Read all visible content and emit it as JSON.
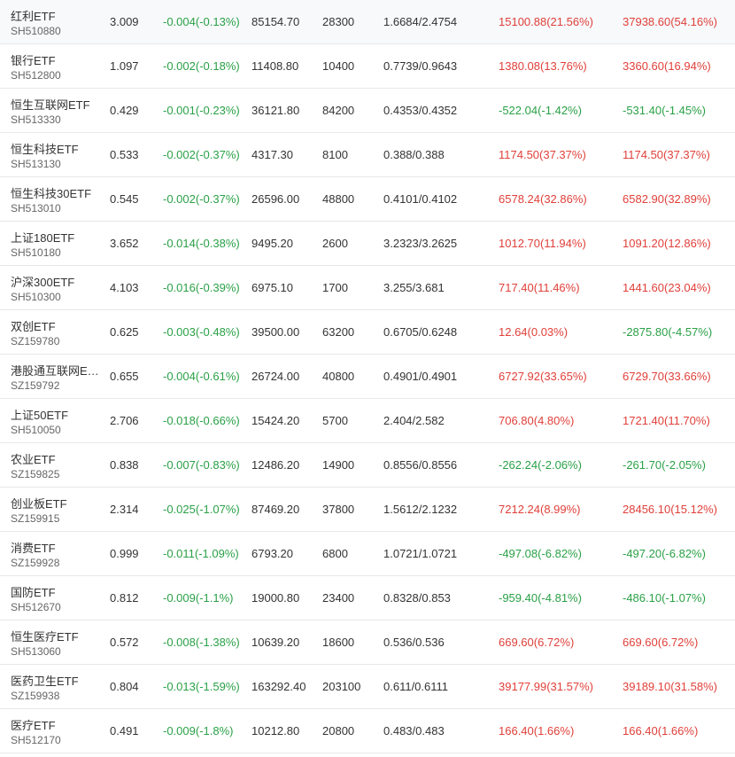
{
  "colors": {
    "up": "#e0403a",
    "down": "#2aa147",
    "text": "#333333",
    "subtext": "#666666",
    "border": "#e8e8e8"
  },
  "rows": [
    {
      "name": "红利ETF",
      "code": "SH510880",
      "price": "3.009",
      "change": "-0.004(-0.13%)",
      "amount": "85154.70",
      "volume": "28300",
      "cost": "1.6684/2.4754",
      "pl1": "15100.88(21.56%)",
      "pl2": "37938.60(54.16%)"
    },
    {
      "name": "银行ETF",
      "code": "SH512800",
      "price": "1.097",
      "change": "-0.002(-0.18%)",
      "amount": "11408.80",
      "volume": "10400",
      "cost": "0.7739/0.9643",
      "pl1": "1380.08(13.76%)",
      "pl2": "3360.60(16.94%)"
    },
    {
      "name": "恒生互联网ETF",
      "code": "SH513330",
      "price": "0.429",
      "change": "-0.001(-0.23%)",
      "amount": "36121.80",
      "volume": "84200",
      "cost": "0.4353/0.4352",
      "pl1": "-522.04(-1.42%)",
      "pl2": "-531.40(-1.45%)"
    },
    {
      "name": "恒生科技ETF",
      "code": "SH513130",
      "price": "0.533",
      "change": "-0.002(-0.37%)",
      "amount": "4317.30",
      "volume": "8100",
      "cost": "0.388/0.388",
      "pl1": "1174.50(37.37%)",
      "pl2": "1174.50(37.37%)"
    },
    {
      "name": "恒生科技30ETF",
      "code": "SH513010",
      "price": "0.545",
      "change": "-0.002(-0.37%)",
      "amount": "26596.00",
      "volume": "48800",
      "cost": "0.4101/0.4102",
      "pl1": "6578.24(32.86%)",
      "pl2": "6582.90(32.89%)"
    },
    {
      "name": "上证180ETF",
      "code": "SH510180",
      "price": "3.652",
      "change": "-0.014(-0.38%)",
      "amount": "9495.20",
      "volume": "2600",
      "cost": "3.2323/3.2625",
      "pl1": "1012.70(11.94%)",
      "pl2": "1091.20(12.86%)"
    },
    {
      "name": "沪深300ETF",
      "code": "SH510300",
      "price": "4.103",
      "change": "-0.016(-0.39%)",
      "amount": "6975.10",
      "volume": "1700",
      "cost": "3.255/3.681",
      "pl1": "717.40(11.46%)",
      "pl2": "1441.60(23.04%)"
    },
    {
      "name": "双创ETF",
      "code": "SZ159780",
      "price": "0.625",
      "change": "-0.003(-0.48%)",
      "amount": "39500.00",
      "volume": "63200",
      "cost": "0.6705/0.6248",
      "pl1": "12.64(0.03%)",
      "pl2": "-2875.80(-4.57%)"
    },
    {
      "name": "港股通互联网ETF",
      "code": "SZ159792",
      "price": "0.655",
      "change": "-0.004(-0.61%)",
      "amount": "26724.00",
      "volume": "40800",
      "cost": "0.4901/0.4901",
      "pl1": "6727.92(33.65%)",
      "pl2": "6729.70(33.66%)"
    },
    {
      "name": "上证50ETF",
      "code": "SH510050",
      "price": "2.706",
      "change": "-0.018(-0.66%)",
      "amount": "15424.20",
      "volume": "5700",
      "cost": "2.404/2.582",
      "pl1": "706.80(4.80%)",
      "pl2": "1721.40(11.70%)"
    },
    {
      "name": "农业ETF",
      "code": "SZ159825",
      "price": "0.838",
      "change": "-0.007(-0.83%)",
      "amount": "12486.20",
      "volume": "14900",
      "cost": "0.8556/0.8556",
      "pl1": "-262.24(-2.06%)",
      "pl2": "-261.70(-2.05%)"
    },
    {
      "name": "创业板ETF",
      "code": "SZ159915",
      "price": "2.314",
      "change": "-0.025(-1.07%)",
      "amount": "87469.20",
      "volume": "37800",
      "cost": "1.5612/2.1232",
      "pl1": "7212.24(8.99%)",
      "pl2": "28456.10(15.12%)"
    },
    {
      "name": "消费ETF",
      "code": "SZ159928",
      "price": "0.999",
      "change": "-0.011(-1.09%)",
      "amount": "6793.20",
      "volume": "6800",
      "cost": "1.0721/1.0721",
      "pl1": "-497.08(-6.82%)",
      "pl2": "-497.20(-6.82%)"
    },
    {
      "name": "国防ETF",
      "code": "SH512670",
      "price": "0.812",
      "change": "-0.009(-1.1%)",
      "amount": "19000.80",
      "volume": "23400",
      "cost": "0.8328/0.853",
      "pl1": "-959.40(-4.81%)",
      "pl2": "-486.10(-1.07%)"
    },
    {
      "name": "恒生医疗ETF",
      "code": "SH513060",
      "price": "0.572",
      "change": "-0.008(-1.38%)",
      "amount": "10639.20",
      "volume": "18600",
      "cost": "0.536/0.536",
      "pl1": "669.60(6.72%)",
      "pl2": "669.60(6.72%)"
    },
    {
      "name": "医药卫生ETF",
      "code": "SZ159938",
      "price": "0.804",
      "change": "-0.013(-1.59%)",
      "amount": "163292.40",
      "volume": "203100",
      "cost": "0.611/0.6111",
      "pl1": "39177.99(31.57%)",
      "pl2": "39189.10(31.58%)"
    },
    {
      "name": "医疗ETF",
      "code": "SH512170",
      "price": "0.491",
      "change": "-0.009(-1.8%)",
      "amount": "10212.80",
      "volume": "20800",
      "cost": "0.483/0.483",
      "pl1": "166.40(1.66%)",
      "pl2": "166.40(1.66%)"
    }
  ]
}
